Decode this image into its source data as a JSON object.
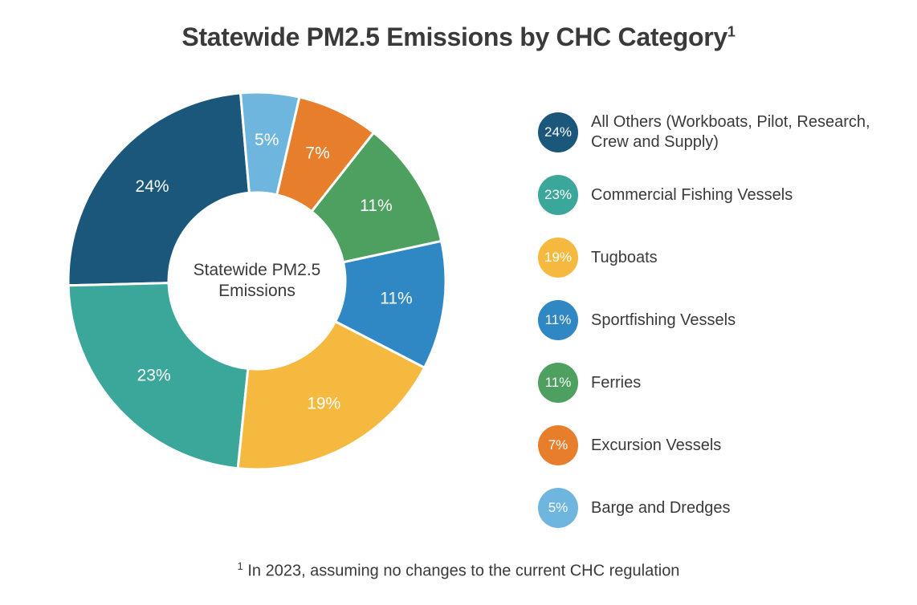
{
  "title": "Statewide PM2.5 Emissions by CHC Category",
  "title_super": "1",
  "center_label_line1": "Statewide PM2.5",
  "center_label_line2": "Emissions",
  "footnote_super": "1",
  "footnote": " In 2023, assuming no changes to the current CHC regulation",
  "chart": {
    "type": "donut",
    "start_angle_deg": -5,
    "direction": "counterclockwise",
    "outer_radius": 235,
    "inner_radius": 110,
    "label_radius": 175,
    "stroke": "#ffffff",
    "stroke_width": 3,
    "background_color": "#ffffff",
    "label_fontsize": 21,
    "label_color": "#ffffff",
    "slices": [
      {
        "name": "All Others (Workboats, Pilot, Research, Crew and Supply)",
        "value": 24,
        "color": "#1b577b",
        "label": "24%"
      },
      {
        "name": "Commercial Fishing Vessels",
        "value": 23,
        "color": "#3ba69a",
        "label": "23%"
      },
      {
        "name": "Tugboats",
        "value": 19,
        "color": "#f5b93f",
        "label": "19%"
      },
      {
        "name": "Sportfishing Vessels",
        "value": 11,
        "color": "#2f87c3",
        "label": "11%"
      },
      {
        "name": "Ferries",
        "value": 11,
        "color": "#4da060",
        "label": "11%"
      },
      {
        "name": "Excursion Vessels",
        "value": 7,
        "color": "#e77e2c",
        "label": "7%"
      },
      {
        "name": "Barge and Dredges",
        "value": 5,
        "color": "#6fb6df",
        "label": "5%"
      }
    ]
  },
  "legend": {
    "swatch_diameter": 50,
    "swatch_fontsize": 17,
    "text_fontsize": 20,
    "items": [
      {
        "pct": "24%",
        "label": "All Others (Workboats, Pilot, Research, Crew and Supply)",
        "color": "#1b577b"
      },
      {
        "pct": "23%",
        "label": "Commercial Fishing Vessels",
        "color": "#3ba69a"
      },
      {
        "pct": "19%",
        "label": "Tugboats",
        "color": "#f5b93f"
      },
      {
        "pct": "11%",
        "label": "Sportfishing Vessels",
        "color": "#2f87c3"
      },
      {
        "pct": "11%",
        "label": "Ferries",
        "color": "#4da060"
      },
      {
        "pct": "7%",
        "label": "Excursion Vessels",
        "color": "#e77e2c"
      },
      {
        "pct": "5%",
        "label": "Barge and Dredges",
        "color": "#6fb6df"
      }
    ]
  }
}
